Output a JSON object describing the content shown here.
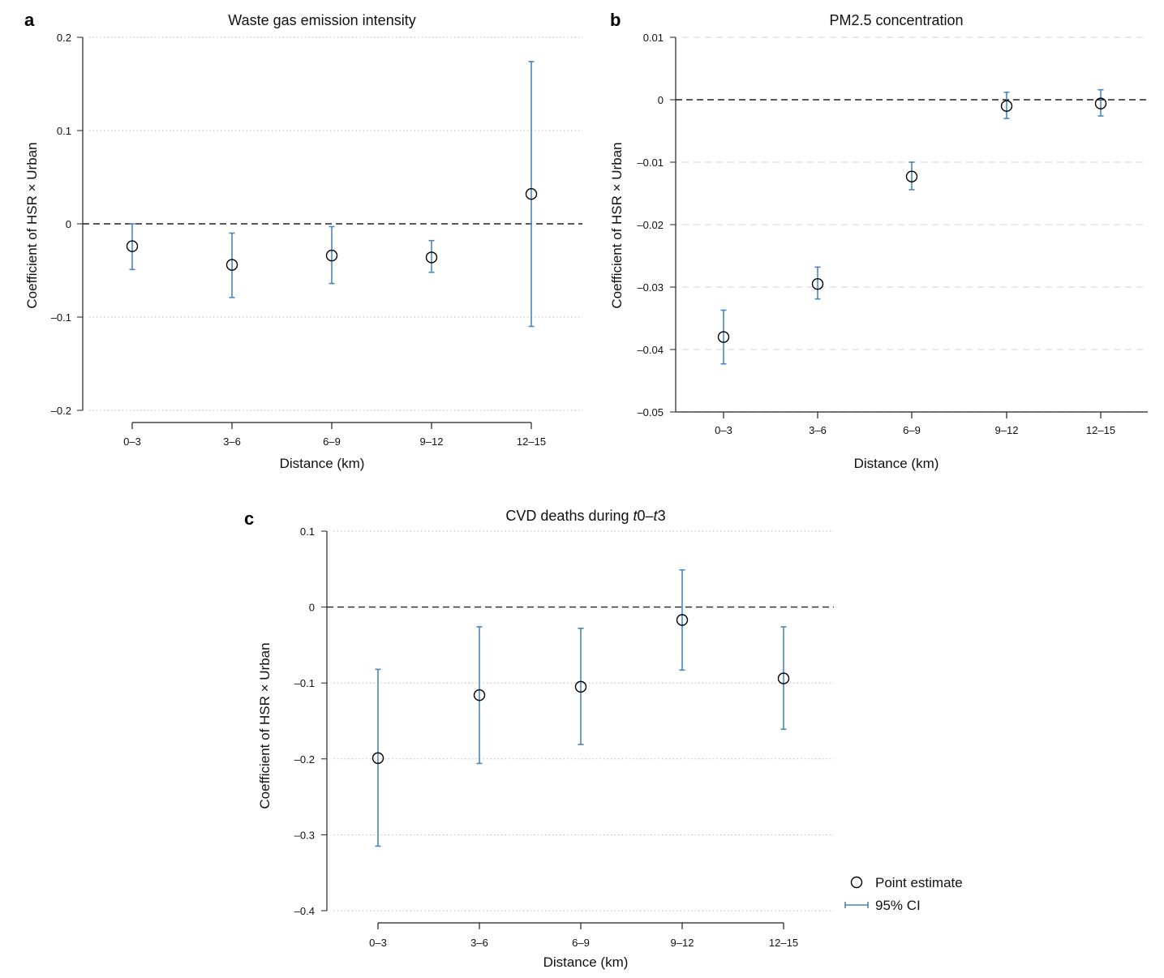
{
  "colors": {
    "ci": "#4a86c0",
    "point": "#000000",
    "zero_line": "#222222",
    "grid": "#cccccc",
    "axis": "#222222"
  },
  "legend": {
    "point_label": "Point estimate",
    "ci_label": "95% CI",
    "point_icon": "open-circle",
    "ci_icon": "capped-line"
  },
  "chart_data": [
    {
      "panel": "a",
      "type": "scatter",
      "subtype": "point-estimate-with-error-bars",
      "title": "Waste gas emission intensity",
      "title_parts": [
        {
          "text": "Waste gas emission intensity"
        }
      ],
      "xlabel": "Distance (km)",
      "ylabel": "Coefficient of HSR × Urban",
      "categories": [
        "0–3",
        "3–6",
        "6–9",
        "9–12",
        "12–15"
      ],
      "estimate": [
        -0.024,
        -0.044,
        -0.034,
        -0.036,
        0.032
      ],
      "ci_upper": [
        0.0,
        -0.01,
        -0.003,
        -0.018,
        0.174
      ],
      "ci_lower": [
        -0.049,
        -0.079,
        -0.064,
        -0.052,
        -0.11
      ],
      "ylim": [
        -0.2,
        0.2
      ],
      "yticks": [
        0.2,
        0.1,
        0,
        -0.1,
        -0.2
      ],
      "ytick_labels": [
        "0.2",
        "0.1",
        "0",
        "–0.1",
        "–0.2"
      ],
      "grid": "dotted horizontal",
      "reference_line": 0
    },
    {
      "panel": "b",
      "type": "scatter",
      "subtype": "point-estimate-with-error-bars",
      "title": "PM2.5 concentration",
      "title_parts": [
        {
          "text": "PM2.5 concentration"
        }
      ],
      "xlabel": "Distance (km)",
      "ylabel": "Coefficient of HSR × Urban",
      "categories": [
        "0–3",
        "3–6",
        "6–9",
        "9–12",
        "12–15"
      ],
      "estimate": [
        -0.038,
        -0.0295,
        -0.0123,
        -0.001,
        -0.0006
      ],
      "ci_upper": [
        -0.0337,
        -0.0268,
        -0.01,
        0.0012,
        0.0016
      ],
      "ci_lower": [
        -0.0423,
        -0.0319,
        -0.0144,
        -0.003,
        -0.0026
      ],
      "ylim": [
        -0.05,
        0.01
      ],
      "yticks": [
        0.01,
        0,
        -0.01,
        -0.02,
        -0.03,
        -0.04,
        -0.05
      ],
      "ytick_labels": [
        "0.01",
        "0",
        "–0.01",
        "–0.02",
        "–0.03",
        "–0.04",
        "–0.05"
      ],
      "grid": "dashed horizontal",
      "reference_line": 0
    },
    {
      "panel": "c",
      "type": "scatter",
      "subtype": "point-estimate-with-error-bars",
      "title": "CVD deaths during t0–t3",
      "title_parts": [
        {
          "text": "CVD deaths during "
        },
        {
          "text": "t",
          "italic": true
        },
        {
          "text": "0–"
        },
        {
          "text": "t",
          "italic": true
        },
        {
          "text": "3"
        }
      ],
      "xlabel": "Distance (km)",
      "ylabel": "Coefficient of HSR × Urban",
      "categories": [
        "0–3",
        "3–6",
        "6–9",
        "9–12",
        "12–15"
      ],
      "estimate": [
        -0.199,
        -0.116,
        -0.105,
        -0.017,
        -0.094
      ],
      "ci_upper": [
        -0.082,
        -0.026,
        -0.028,
        0.049,
        -0.026
      ],
      "ci_lower": [
        -0.315,
        -0.206,
        -0.181,
        -0.083,
        -0.161
      ],
      "ylim": [
        -0.4,
        0.1
      ],
      "yticks": [
        0.1,
        0,
        -0.1,
        -0.2,
        -0.3,
        -0.4
      ],
      "ytick_labels": [
        "0.1",
        "0",
        "–0.1",
        "–0.2",
        "–0.3",
        "–0.4"
      ],
      "grid": "dotted horizontal",
      "reference_line": 0,
      "legend_position": "bottom-right"
    }
  ]
}
